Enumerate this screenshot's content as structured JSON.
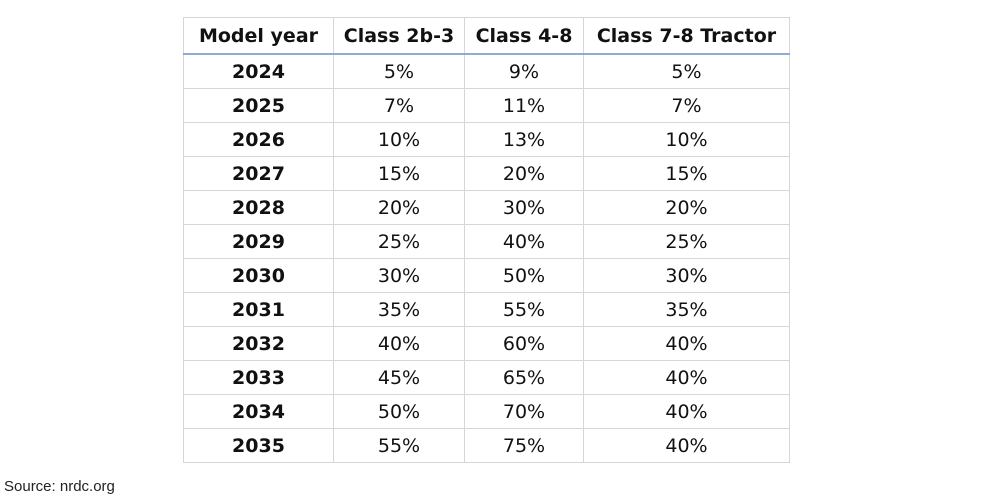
{
  "chart_data": {
    "type": "table",
    "columns": [
      "Model year",
      "Class 2b-3",
      "Class 4-8",
      "Class 7-8 Tractor"
    ],
    "rows": [
      [
        "2024",
        "5%",
        "9%",
        "5%"
      ],
      [
        "2025",
        "7%",
        "11%",
        "7%"
      ],
      [
        "2026",
        "10%",
        "13%",
        "10%"
      ],
      [
        "2027",
        "15%",
        "20%",
        "15%"
      ],
      [
        "2028",
        "20%",
        "30%",
        "20%"
      ],
      [
        "2029",
        "25%",
        "40%",
        "25%"
      ],
      [
        "2030",
        "30%",
        "50%",
        "30%"
      ],
      [
        "2031",
        "35%",
        "55%",
        "35%"
      ],
      [
        "2032",
        "40%",
        "60%",
        "40%"
      ],
      [
        "2033",
        "45%",
        "65%",
        "40%"
      ],
      [
        "2034",
        "50%",
        "70%",
        "40%"
      ],
      [
        "2035",
        "55%",
        "75%",
        "40%"
      ]
    ]
  },
  "source": "Source: nrdc.org",
  "colors": {
    "header_rule": "#8eaad9",
    "grid_lines": "#d6d6d6"
  }
}
